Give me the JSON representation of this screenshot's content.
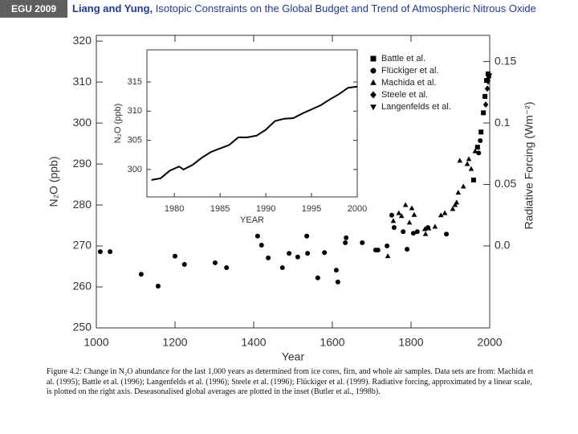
{
  "header": {
    "badge": "EGU 2009",
    "authors": "Liang and Yung,",
    "title": "Isotopic Constraints on the Global Budget and Trend of Atmospheric Nitrous Oxide"
  },
  "caption": "Figure 4.2: Change in N₂O abundance for the last 1,000 years as determined from ice cores, firn, and whole air samples. Data sets are from: Machida et al. (1995); Battle et al. (1996); Langenfelds et al. (1996); Steele et al. (1996); Flückiger et al. (1999). Radiative forcing, approximated by a linear scale, is plotted on the right axis. Deseasonalised global averages are plotted in the inset (Butler et al., 1998b).",
  "chart_data": [
    {
      "type": "scatter",
      "x_label": "Year",
      "y_label": "N₂O (ppb)",
      "y2_label": "Radiative Forcing (Wm⁻²)",
      "xlim": [
        1000,
        2000
      ],
      "xticks": [
        1000,
        1200,
        1400,
        1600,
        1800,
        2000
      ],
      "ylim": [
        250,
        321.4
      ],
      "yticks": [
        250,
        260,
        270,
        280,
        290,
        300,
        310,
        320
      ],
      "y2lim": [
        -0.0667,
        0.1713
      ],
      "y2ticks": [
        {
          "value": 0,
          "label": "0.0"
        },
        0.05,
        0.1,
        0.15
      ],
      "legend": "top-right",
      "series": [
        {
          "name": "Battle et al.",
          "marker": "square",
          "color": "#000000",
          "x": [
            1959,
            1969,
            1978,
            1984,
            1988,
            1992,
            1996
          ],
          "values": [
            286.1,
            294.1,
            297.8,
            302.5,
            306.5,
            310.4,
            312.0
          ]
        },
        {
          "name": "Flückiger et al.",
          "marker": "circle",
          "color": "#000000",
          "x": [
            1010,
            1035,
            1114,
            1157,
            1200,
            1224,
            1302,
            1331,
            1410,
            1420,
            1437,
            1473,
            1490,
            1512,
            1535,
            1537,
            1563,
            1580,
            1610,
            1614,
            1633,
            1635,
            1676,
            1710,
            1716,
            1739,
            1751,
            1757,
            1780,
            1790,
            1806,
            1816,
            1843,
            1890,
            1972,
            1976
          ],
          "values": [
            268.6,
            268.6,
            263.1,
            260.2,
            267.5,
            265.5,
            265.9,
            264.7,
            272.4,
            270.2,
            267.1,
            264.7,
            268.2,
            267.3,
            272.4,
            268.2,
            262.2,
            268.4,
            264.1,
            261.2,
            270.8,
            272.0,
            270.8,
            269.0,
            269.0,
            270.0,
            277.5,
            274.5,
            273.5,
            269.2,
            273.1,
            273.5,
            274.5,
            272.9,
            292.7,
            295.7
          ]
        },
        {
          "name": "Machida et al.",
          "marker": "triangle-up",
          "color": "#000000",
          "x": [
            1741,
            1755,
            1769,
            1776,
            1786,
            1796,
            1802,
            1808,
            1835,
            1837,
            1845,
            1861,
            1876,
            1886,
            1906,
            1912,
            1916,
            1920,
            1924,
            1933,
            1943,
            1947,
            1953,
            1963
          ],
          "values": [
            267.5,
            276.1,
            278.0,
            277.3,
            280.0,
            275.7,
            279.2,
            277.6,
            274.1,
            272.9,
            274.3,
            274.7,
            277.5,
            278.0,
            279.0,
            280.0,
            280.6,
            283.0,
            290.8,
            284.5,
            290.0,
            291.2,
            288.8,
            293.1
          ]
        },
        {
          "name": "Steele et al.",
          "marker": "diamond",
          "color": "#000000",
          "x": [
            1990,
            1994,
            1998
          ],
          "values": [
            304.5,
            308.4,
            311.2
          ]
        },
        {
          "name": "Langenfelds et al.",
          "marker": "triangle-down",
          "color": "#000000",
          "x": [
            1996,
            2000
          ],
          "values": [
            310.0,
            311.6
          ]
        }
      ]
    },
    {
      "type": "line",
      "x_label": "YEAR",
      "y_label": "N₂O (ppb)",
      "xlim": [
        1977,
        2000
      ],
      "xticks": [
        1980,
        1985,
        1990,
        1995,
        2000
      ],
      "ylim": [
        295.3,
        320.5
      ],
      "yticks": [
        300,
        305,
        310,
        315
      ],
      "series": [
        {
          "color": "#000000",
          "x": [
            1977.5,
            1978.5,
            1979.5,
            1980.5,
            1981,
            1982,
            1983,
            1984,
            1985,
            1986,
            1987,
            1988,
            1989,
            1990,
            1991,
            1992,
            1993,
            1994,
            1995,
            1996,
            1997,
            1998,
            1999,
            2000
          ],
          "values": [
            298.2,
            298.5,
            299.8,
            300.5,
            300.0,
            300.8,
            302.0,
            303.0,
            303.6,
            304.2,
            305.5,
            305.5,
            305.8,
            306.8,
            308.3,
            308.7,
            308.8,
            309.6,
            310.3,
            311.0,
            312.0,
            312.9,
            314.0,
            314.2
          ]
        }
      ]
    }
  ]
}
